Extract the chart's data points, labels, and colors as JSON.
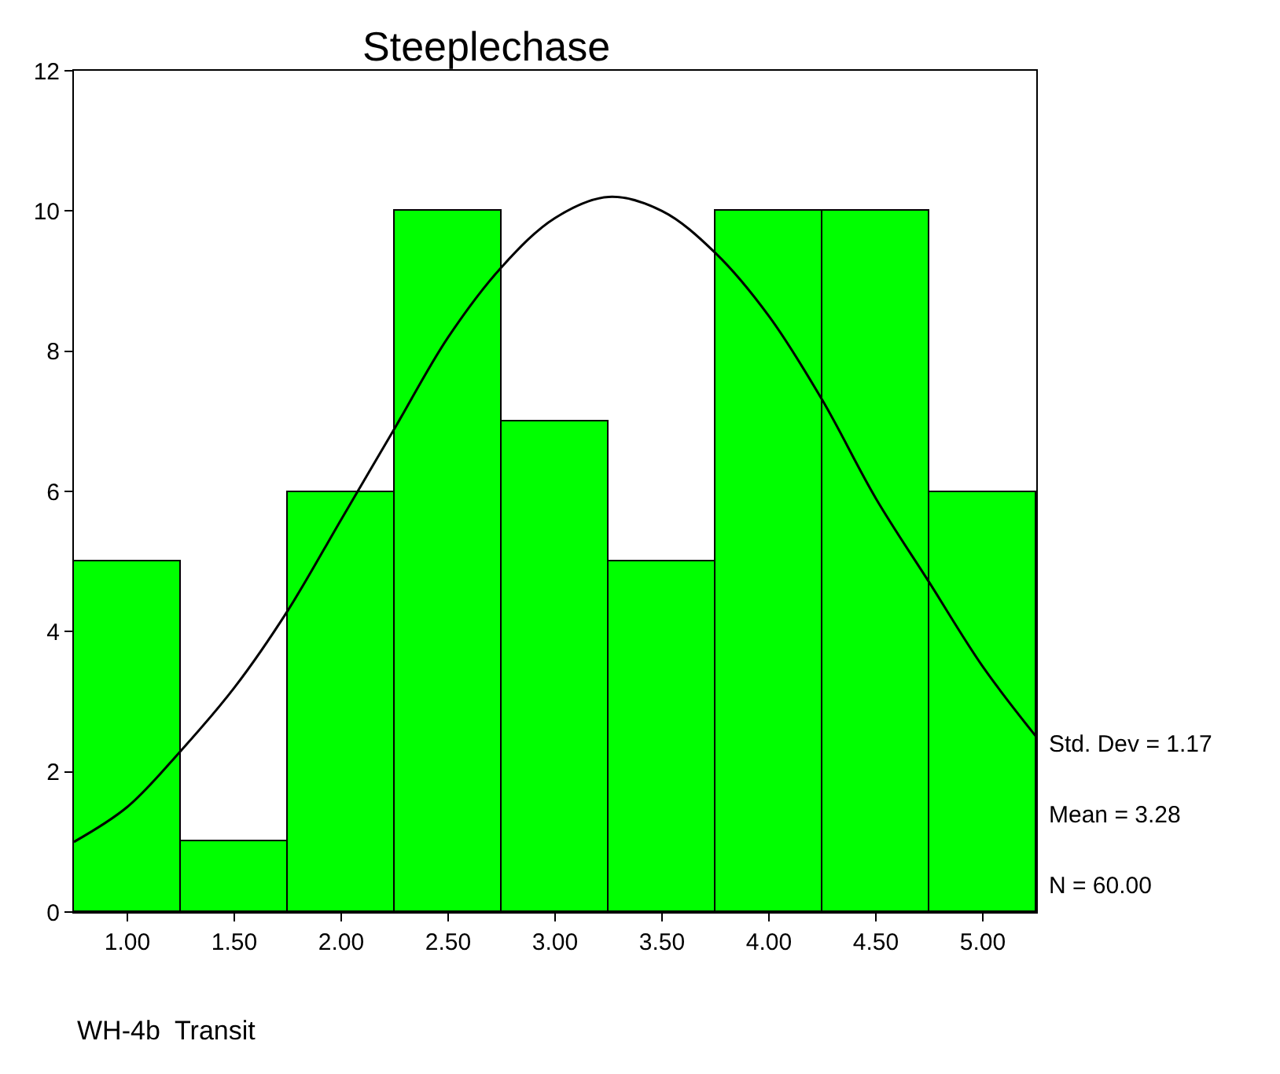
{
  "chart_data": {
    "type": "histogram",
    "title": "Steeplechase",
    "xlabel": "WH-4b  Transit",
    "bins": [
      0.75,
      1.25,
      1.75,
      2.25,
      2.75,
      3.25,
      3.75,
      4.25,
      4.75,
      5.25
    ],
    "series": [
      {
        "color": "#00ff00",
        "values": [
          5,
          1,
          6,
          10,
          7,
          5,
          10,
          10,
          6
        ]
      },
      {
        "type": "line",
        "color": "#000000",
        "x": [
          0.75,
          1.0,
          1.25,
          1.5,
          1.75,
          2.0,
          2.25,
          2.5,
          2.75,
          3.0,
          3.25,
          3.5,
          3.75,
          4.0,
          4.25,
          4.5,
          4.75,
          5.0,
          5.25
        ],
        "values": [
          1.0,
          1.5,
          2.3,
          3.2,
          4.3,
          5.6,
          6.9,
          8.2,
          9.2,
          9.9,
          10.2,
          10.0,
          9.4,
          8.5,
          7.3,
          5.9,
          4.7,
          3.5,
          2.5
        ]
      }
    ],
    "xlim": [
      0.75,
      5.25
    ],
    "xticks": [
      {
        "value": 1,
        "label": "1.00"
      },
      {
        "value": 1.5,
        "label": "1.50"
      },
      {
        "value": 2,
        "label": "2.00"
      },
      {
        "value": 2.5,
        "label": "2.50"
      },
      {
        "value": 3,
        "label": "3.00"
      },
      {
        "value": 3.5,
        "label": "3.50"
      },
      {
        "value": 4,
        "label": "4.00"
      },
      {
        "value": 4.5,
        "label": "4.50"
      },
      {
        "value": 5,
        "label": "5.00"
      }
    ],
    "ylim": [
      0,
      12
    ],
    "yticks": [
      0,
      2,
      4,
      6,
      8,
      10,
      12
    ],
    "marker": "none",
    "line_style": "solid",
    "annotations": [
      "Std. Dev = 1.17",
      "Mean = 3.28",
      "N = 60.00"
    ]
  }
}
